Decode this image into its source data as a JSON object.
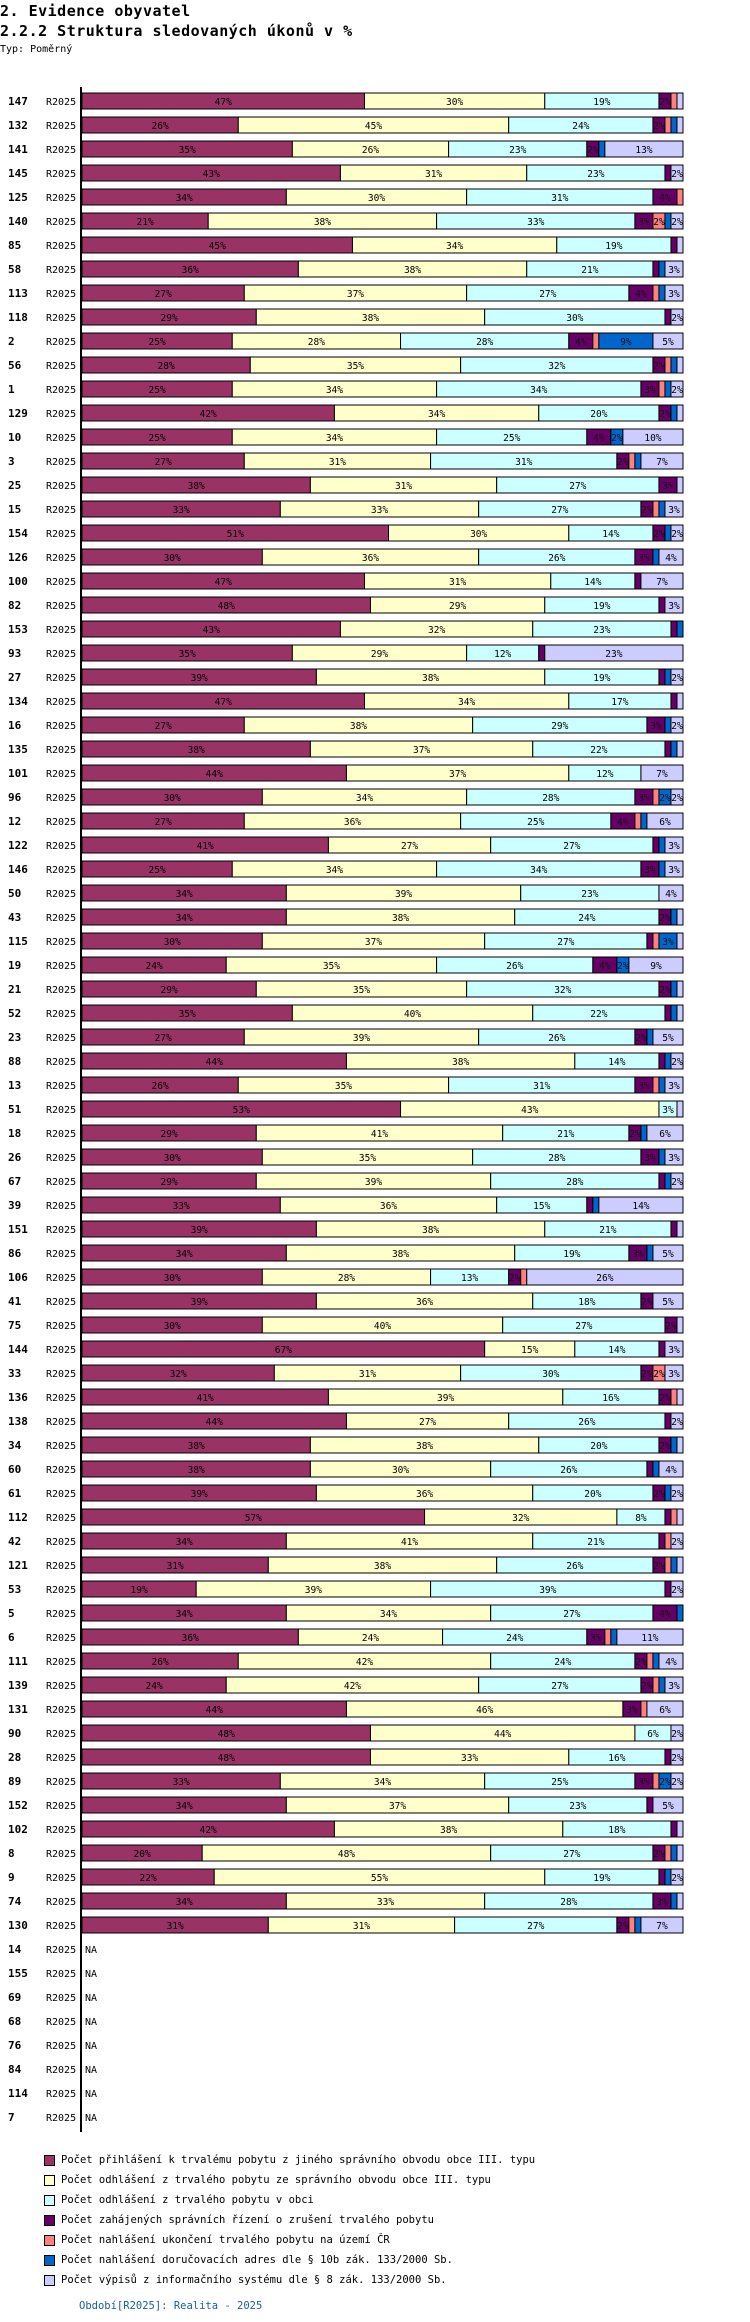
{
  "header": {
    "section": "2. Evidence obyvatel",
    "title": "2.2.2 Struktura sledovaných úkonů v %",
    "type_label": "Typ: Poměrný"
  },
  "chart_data": {
    "type": "bar",
    "orientation": "horizontal",
    "stacked": "percent",
    "title": "2.2.2 Struktura sledovaných úkonů v %",
    "period_label": "R2025",
    "xlim": [
      0,
      100
    ],
    "value_unit": "%",
    "na_label": "NA",
    "series": [
      {
        "name": "Počet přihlášení k trvalému pobytu z jiného správního obvodu obce III. typu",
        "color": "#993366"
      },
      {
        "name": "Počet odhlášení z trvalého pobytu ze správního obvodu obce III. typu",
        "color": "#ffffcc"
      },
      {
        "name": "Počet odhlášení z trvalého pobytu v obci",
        "color": "#ccffff"
      },
      {
        "name": "Počet zahájených správních řízení o zrušení trvalého pobytu",
        "color": "#660066"
      },
      {
        "name": "Počet nahlášení ukončení trvalého pobytu na území ČR",
        "color": "#ff8080"
      },
      {
        "name": "Počet nahlášení doručovacích adres dle § 10b zák. 133/2000 Sb.",
        "color": "#0066cc"
      },
      {
        "name": "Počet výpisů z informačního systému dle § 8 zák. 133/2000 Sb.",
        "color": "#ccccff"
      }
    ],
    "rows": [
      {
        "id": "147",
        "values": [
          47,
          30,
          19,
          2,
          1,
          0,
          1
        ]
      },
      {
        "id": "132",
        "values": [
          26,
          45,
          24,
          2,
          1,
          1,
          1
        ]
      },
      {
        "id": "141",
        "values": [
          35,
          26,
          23,
          2,
          0,
          1,
          13
        ]
      },
      {
        "id": "145",
        "values": [
          43,
          31,
          23,
          1,
          0,
          0,
          2
        ]
      },
      {
        "id": "125",
        "values": [
          34,
          30,
          31,
          4,
          1,
          0,
          0
        ]
      },
      {
        "id": "140",
        "values": [
          21,
          38,
          33,
          3,
          2,
          1,
          2
        ]
      },
      {
        "id": "85",
        "values": [
          45,
          34,
          19,
          1,
          0,
          0,
          1
        ]
      },
      {
        "id": "58",
        "values": [
          36,
          38,
          21,
          1,
          0,
          1,
          3
        ]
      },
      {
        "id": "113",
        "values": [
          27,
          37,
          27,
          4,
          1,
          1,
          3
        ]
      },
      {
        "id": "118",
        "values": [
          29,
          38,
          30,
          1,
          0,
          0,
          2
        ]
      },
      {
        "id": "2",
        "values": [
          25,
          28,
          28,
          4,
          1,
          9,
          5
        ]
      },
      {
        "id": "56",
        "values": [
          28,
          35,
          32,
          2,
          1,
          1,
          1
        ]
      },
      {
        "id": "1",
        "values": [
          25,
          34,
          34,
          3,
          1,
          1,
          2
        ]
      },
      {
        "id": "129",
        "values": [
          42,
          34,
          20,
          2,
          0,
          1,
          1
        ]
      },
      {
        "id": "10",
        "values": [
          25,
          34,
          25,
          4,
          0,
          2,
          10
        ]
      },
      {
        "id": "3",
        "values": [
          27,
          31,
          31,
          2,
          1,
          1,
          7
        ]
      },
      {
        "id": "25",
        "values": [
          38,
          31,
          27,
          3,
          0,
          0,
          1
        ]
      },
      {
        "id": "15",
        "values": [
          33,
          33,
          27,
          2,
          1,
          1,
          3
        ]
      },
      {
        "id": "154",
        "values": [
          51,
          30,
          14,
          2,
          0,
          1,
          2
        ]
      },
      {
        "id": "126",
        "values": [
          30,
          36,
          26,
          3,
          0,
          1,
          4
        ]
      },
      {
        "id": "100",
        "values": [
          47,
          31,
          14,
          1,
          0,
          0,
          7
        ]
      },
      {
        "id": "82",
        "values": [
          48,
          29,
          19,
          1,
          0,
          0,
          3
        ]
      },
      {
        "id": "153",
        "values": [
          43,
          32,
          23,
          1,
          0,
          1,
          0
        ]
      },
      {
        "id": "93",
        "values": [
          35,
          29,
          12,
          1,
          0,
          0,
          23
        ]
      },
      {
        "id": "27",
        "values": [
          39,
          38,
          19,
          1,
          0,
          1,
          2
        ]
      },
      {
        "id": "134",
        "values": [
          47,
          34,
          17,
          1,
          0,
          0,
          1
        ]
      },
      {
        "id": "16",
        "values": [
          27,
          38,
          29,
          3,
          0,
          1,
          2
        ]
      },
      {
        "id": "135",
        "values": [
          38,
          37,
          22,
          1,
          0,
          1,
          1
        ]
      },
      {
        "id": "101",
        "values": [
          44,
          37,
          12,
          0,
          0,
          0,
          7
        ]
      },
      {
        "id": "96",
        "values": [
          30,
          34,
          28,
          3,
          1,
          2,
          2
        ]
      },
      {
        "id": "12",
        "values": [
          27,
          36,
          25,
          4,
          1,
          1,
          6
        ]
      },
      {
        "id": "122",
        "values": [
          41,
          27,
          27,
          1,
          0,
          1,
          3
        ]
      },
      {
        "id": "146",
        "values": [
          25,
          34,
          34,
          3,
          0,
          1,
          3
        ]
      },
      {
        "id": "50",
        "values": [
          34,
          39,
          23,
          0,
          0,
          0,
          4
        ]
      },
      {
        "id": "43",
        "values": [
          34,
          38,
          24,
          2,
          0,
          1,
          1
        ]
      },
      {
        "id": "115",
        "values": [
          30,
          37,
          27,
          1,
          1,
          3,
          1
        ]
      },
      {
        "id": "19",
        "values": [
          24,
          35,
          26,
          4,
          0,
          2,
          9
        ]
      },
      {
        "id": "21",
        "values": [
          29,
          35,
          32,
          2,
          0,
          1,
          1
        ]
      },
      {
        "id": "52",
        "values": [
          35,
          40,
          22,
          1,
          0,
          1,
          1
        ]
      },
      {
        "id": "23",
        "values": [
          27,
          39,
          26,
          2,
          0,
          1,
          5
        ]
      },
      {
        "id": "88",
        "values": [
          44,
          38,
          14,
          1,
          0,
          1,
          2
        ]
      },
      {
        "id": "13",
        "values": [
          26,
          35,
          31,
          3,
          1,
          1,
          3
        ]
      },
      {
        "id": "51",
        "values": [
          53,
          43,
          3,
          0,
          0,
          0,
          1
        ]
      },
      {
        "id": "18",
        "values": [
          29,
          41,
          21,
          2,
          0,
          1,
          6
        ]
      },
      {
        "id": "26",
        "values": [
          30,
          35,
          28,
          3,
          0,
          1,
          3
        ]
      },
      {
        "id": "67",
        "values": [
          29,
          39,
          28,
          1,
          0,
          1,
          2
        ]
      },
      {
        "id": "39",
        "values": [
          33,
          36,
          15,
          1,
          0,
          1,
          14
        ]
      },
      {
        "id": "151",
        "values": [
          39,
          38,
          21,
          1,
          0,
          0,
          1
        ]
      },
      {
        "id": "86",
        "values": [
          34,
          38,
          19,
          3,
          0,
          1,
          5
        ]
      },
      {
        "id": "106",
        "values": [
          30,
          28,
          13,
          2,
          1,
          0,
          26
        ]
      },
      {
        "id": "41",
        "values": [
          39,
          36,
          18,
          2,
          0,
          0,
          5
        ]
      },
      {
        "id": "75",
        "values": [
          30,
          40,
          27,
          2,
          0,
          0,
          1
        ]
      },
      {
        "id": "144",
        "values": [
          67,
          15,
          14,
          1,
          0,
          0,
          3
        ]
      },
      {
        "id": "33",
        "values": [
          32,
          31,
          30,
          2,
          2,
          0,
          3
        ]
      },
      {
        "id": "136",
        "values": [
          41,
          39,
          16,
          2,
          1,
          0,
          1
        ]
      },
      {
        "id": "138",
        "values": [
          44,
          27,
          26,
          1,
          0,
          0,
          2
        ]
      },
      {
        "id": "34",
        "values": [
          38,
          38,
          20,
          2,
          0,
          1,
          1
        ]
      },
      {
        "id": "60",
        "values": [
          38,
          30,
          26,
          1,
          0,
          1,
          4
        ]
      },
      {
        "id": "61",
        "values": [
          39,
          36,
          20,
          2,
          0,
          1,
          2
        ]
      },
      {
        "id": "112",
        "values": [
          57,
          32,
          8,
          1,
          1,
          0,
          1
        ]
      },
      {
        "id": "42",
        "values": [
          34,
          41,
          21,
          1,
          1,
          0,
          2
        ]
      },
      {
        "id": "121",
        "values": [
          31,
          38,
          26,
          2,
          1,
          1,
          1
        ]
      },
      {
        "id": "53",
        "values": [
          19,
          39,
          39,
          1,
          0,
          0,
          2
        ]
      },
      {
        "id": "5",
        "values": [
          34,
          34,
          27,
          4,
          0,
          1,
          0
        ]
      },
      {
        "id": "6",
        "values": [
          36,
          24,
          24,
          3,
          1,
          1,
          11
        ]
      },
      {
        "id": "111",
        "values": [
          26,
          42,
          24,
          2,
          1,
          1,
          4
        ]
      },
      {
        "id": "139",
        "values": [
          24,
          42,
          27,
          2,
          1,
          1,
          3
        ]
      },
      {
        "id": "131",
        "values": [
          44,
          46,
          0,
          3,
          1,
          0,
          6
        ]
      },
      {
        "id": "90",
        "values": [
          48,
          44,
          6,
          0,
          0,
          0,
          2
        ]
      },
      {
        "id": "28",
        "values": [
          48,
          33,
          16,
          1,
          0,
          0,
          2
        ]
      },
      {
        "id": "89",
        "values": [
          33,
          34,
          25,
          3,
          1,
          2,
          2
        ]
      },
      {
        "id": "152",
        "values": [
          34,
          37,
          23,
          1,
          0,
          0,
          5
        ]
      },
      {
        "id": "102",
        "values": [
          42,
          38,
          18,
          1,
          0,
          0,
          1
        ]
      },
      {
        "id": "8",
        "values": [
          20,
          48,
          27,
          2,
          1,
          1,
          1
        ]
      },
      {
        "id": "9",
        "values": [
          22,
          55,
          19,
          1,
          0,
          1,
          2
        ]
      },
      {
        "id": "74",
        "values": [
          34,
          33,
          28,
          3,
          0,
          1,
          1
        ]
      },
      {
        "id": "130",
        "values": [
          31,
          31,
          27,
          2,
          1,
          1,
          7
        ]
      },
      {
        "id": "14",
        "values": null
      },
      {
        "id": "155",
        "values": null
      },
      {
        "id": "69",
        "values": null
      },
      {
        "id": "68",
        "values": null
      },
      {
        "id": "76",
        "values": null
      },
      {
        "id": "84",
        "values": null
      },
      {
        "id": "114",
        "values": null
      },
      {
        "id": "7",
        "values": null
      }
    ]
  },
  "legend": {
    "items": [
      "Počet přihlášení k trvalému pobytu z jiného správního obvodu obce III. typu",
      "Počet odhlášení z trvalého pobytu ze správního obvodu obce III. typu",
      "Počet odhlášení z trvalého pobytu v obci",
      "Počet zahájených správních řízení o zrušení trvalého pobytu",
      "Počet nahlášení ukončení trvalého pobytu na území ČR",
      "Počet nahlášení doručovacích adres dle § 10b zák. 133/2000 Sb.",
      "Počet výpisů z informačního systému dle § 8 zák. 133/2000 Sb."
    ]
  },
  "footer": {
    "period_note": "Období[R2025]: Realita - 2025"
  }
}
